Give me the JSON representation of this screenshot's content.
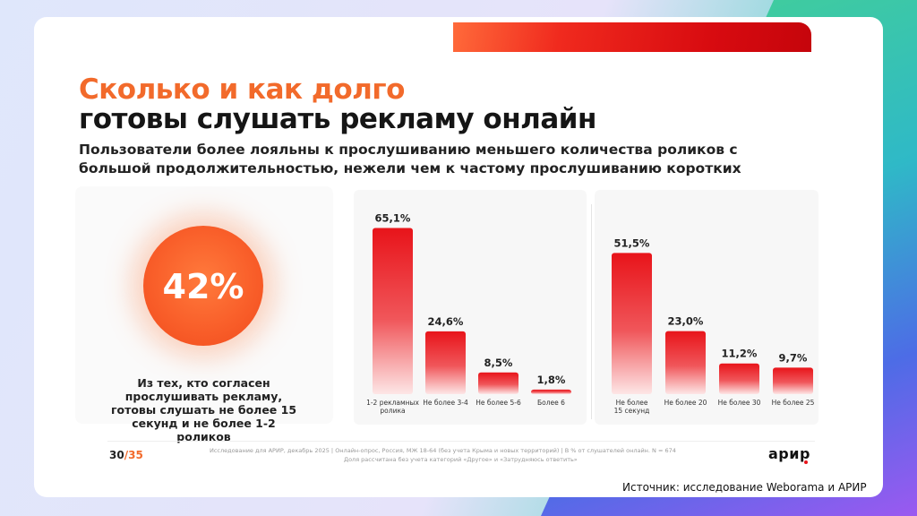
{
  "slide": {
    "title_line1": "Сколько и как долго",
    "title_line2": "готовы слушать рекламу онлайн",
    "subtitle": "Пользователи более лояльны к прослушиванию меньшего количества роликов с большой продолжительностью, нежели чем к частому прослушиванию коротких",
    "highlight_value": "42%",
    "highlight_caption": "Из тех, кто согласен прослушивать рекламу, готовы слушать не более 15 секунд и не более 1-2 роликов",
    "page_current": "30",
    "page_separator": "/",
    "page_total": "35",
    "footer_line1": "Исследование для АРИР, декабрь 2025  |  Онлайн-опрос, Россия, МЖ 18-64 (без учета Крыма и новых территорий)  |  В % от слушателей онлайн. N = 674",
    "footer_line2": "Доля рассчитана без учета категорий «Другое» и «Затрудняюсь ответить»",
    "logo": "арир"
  },
  "source": "Источник: исследование Weborama и АРИР",
  "colors": {
    "accent_orange": "#f26a2b",
    "bar_red": "#e8141a",
    "brand_red": "#d80b10"
  },
  "chart_data": [
    {
      "type": "bar",
      "categories": [
        "1-2 рекламных ролика",
        "Не более 3-4",
        "Не более 5-6",
        "Более 6"
      ],
      "values": [
        65.1,
        24.6,
        8.5,
        1.8
      ],
      "value_labels": [
        "65,1%",
        "24,6%",
        "8,5%",
        "1,8%"
      ],
      "ylim": [
        0,
        70
      ],
      "grid": false,
      "title": "",
      "xlabel": "",
      "ylabel": ""
    },
    {
      "type": "bar",
      "categories": [
        "Не более 15 секунд",
        "Не более 20",
        "Не более 30",
        "Не более 25"
      ],
      "values": [
        51.5,
        23.0,
        11.2,
        9.7
      ],
      "value_labels": [
        "51,5%",
        "23,0%",
        "11,2%",
        "9,7%"
      ],
      "ylim": [
        0,
        70
      ],
      "grid": false,
      "title": "",
      "xlabel": "",
      "ylabel": ""
    }
  ]
}
